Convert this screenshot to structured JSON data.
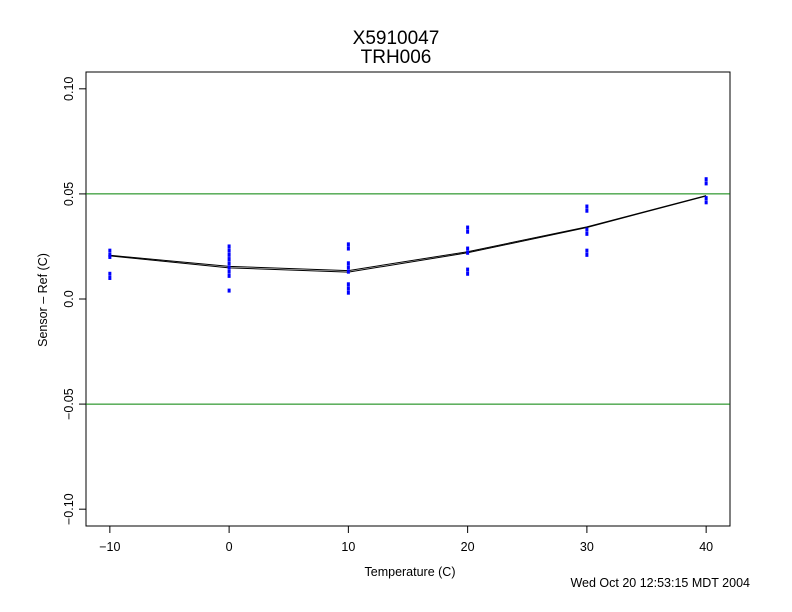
{
  "chart_data": {
    "type": "scatter",
    "title": "X5910047",
    "subtitle": "TRH006",
    "xlabel": "Temperature (C)",
    "ylabel": "Sensor – Ref (C)",
    "xlim": [
      -12,
      42
    ],
    "ylim": [
      -0.108,
      0.108
    ],
    "x_ticks": [
      -10,
      0,
      10,
      20,
      30,
      40
    ],
    "x_tick_labels": [
      "−10",
      "0",
      "10",
      "20",
      "30",
      "40"
    ],
    "y_ticks": [
      -0.1,
      -0.05,
      0.0,
      0.05,
      0.1
    ],
    "y_tick_labels": [
      "−0.10",
      "−0.05",
      "0.0",
      "0.05",
      "0.10"
    ],
    "grid": false,
    "reference_lines": [
      {
        "y": 0.05,
        "color": "#008000"
      },
      {
        "y": -0.05,
        "color": "#008000"
      }
    ],
    "series": [
      {
        "color": "#0000ff",
        "marker": "point",
        "points": [
          [
            -10,
            0.023
          ],
          [
            -10,
            0.021
          ],
          [
            -10,
            0.02
          ],
          [
            -10,
            0.012
          ],
          [
            -10,
            0.01
          ],
          [
            0,
            0.025
          ],
          [
            0,
            0.023
          ],
          [
            0,
            0.021
          ],
          [
            0,
            0.019
          ],
          [
            0,
            0.017
          ],
          [
            0,
            0.015
          ],
          [
            0,
            0.013
          ],
          [
            0,
            0.011
          ],
          [
            0,
            0.004
          ],
          [
            10,
            0.026
          ],
          [
            10,
            0.024
          ],
          [
            10,
            0.017
          ],
          [
            10,
            0.015
          ],
          [
            10,
            0.013
          ],
          [
            10,
            0.007
          ],
          [
            10,
            0.005
          ],
          [
            10,
            0.003
          ],
          [
            20,
            0.034
          ],
          [
            20,
            0.032
          ],
          [
            20,
            0.024
          ],
          [
            20,
            0.022
          ],
          [
            20,
            0.014
          ],
          [
            20,
            0.012
          ],
          [
            30,
            0.044
          ],
          [
            30,
            0.042
          ],
          [
            30,
            0.033
          ],
          [
            30,
            0.031
          ],
          [
            30,
            0.023
          ],
          [
            30,
            0.021
          ],
          [
            40,
            0.057
          ],
          [
            40,
            0.055
          ],
          [
            40,
            0.048
          ],
          [
            40,
            0.046
          ]
        ]
      }
    ],
    "fit_lines": [
      {
        "color": "#000000",
        "x": [
          -10,
          0,
          10,
          20,
          30,
          40
        ],
        "y": [
          0.0205,
          0.0148,
          0.0128,
          0.022,
          0.034,
          0.049
        ]
      },
      {
        "color": "#000000",
        "x": [
          -10,
          0,
          10,
          20,
          30,
          40
        ],
        "y": [
          0.0208,
          0.0155,
          0.0135,
          0.0225,
          0.0343,
          0.0492
        ]
      }
    ]
  },
  "footer": {
    "timestamp": "Wed Oct 20 12:53:15 MDT 2004"
  }
}
